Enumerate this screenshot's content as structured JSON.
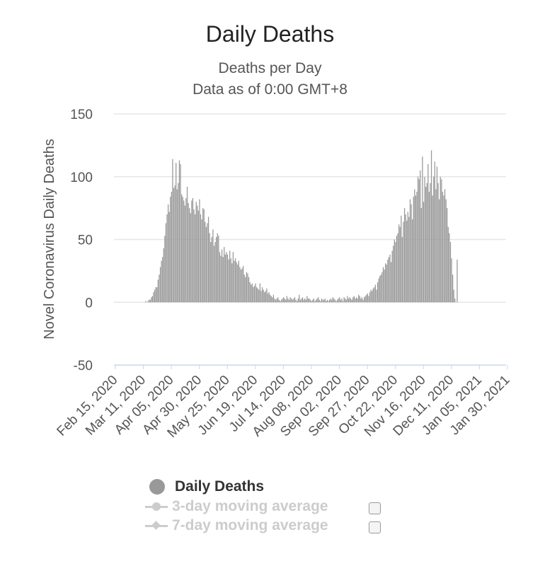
{
  "chart_data": {
    "type": "bar",
    "title": "Daily Deaths",
    "subtitle_lines": [
      "Deaths per Day",
      "Data as of 0:00 GMT+8"
    ],
    "ylabel": "Novel Coronavirus Daily Deaths",
    "ylim": [
      -50,
      150
    ],
    "yticks": [
      150,
      100,
      50,
      0,
      -50
    ],
    "grid": true,
    "x_tick_labels": [
      "Feb 15, 2020",
      "Mar 11, 2020",
      "Apr 05, 2020",
      "Apr 30, 2020",
      "May 25, 2020",
      "Jun 19, 2020",
      "Jul 14, 2020",
      "Aug 08, 2020",
      "Sep 02, 2020",
      "Sep 27, 2020",
      "Oct 22, 2020",
      "Nov 16, 2020",
      "Dec 11, 2020",
      "Jan 05, 2021",
      "Jan 30, 2021"
    ],
    "x_start": "2020-02-15",
    "x_end": "2021-01-30",
    "series": [
      {
        "name": "Daily Deaths",
        "color": "#999999",
        "values": [
          0,
          0,
          0,
          0,
          0,
          0,
          0,
          0,
          0,
          0,
          0,
          0,
          0,
          0,
          0,
          0,
          0,
          0,
          0,
          0,
          0,
          0,
          0,
          0,
          0,
          0,
          0,
          0,
          1,
          0,
          1,
          2,
          2,
          4,
          5,
          8,
          10,
          12,
          12,
          18,
          22,
          28,
          33,
          36,
          43,
          53,
          63,
          70,
          78,
          72,
          84,
          88,
          114,
          91,
          93,
          111,
          90,
          95,
          113,
          110,
          86,
          84,
          81,
          77,
          83,
          92,
          79,
          75,
          71,
          81,
          83,
          74,
          70,
          80,
          77,
          73,
          82,
          70,
          66,
          75,
          74,
          64,
          60,
          63,
          68,
          55,
          48,
          52,
          58,
          45,
          48,
          52,
          55,
          53,
          40,
          37,
          42,
          36,
          44,
          38,
          40,
          38,
          34,
          41,
          35,
          31,
          40,
          33,
          35,
          32,
          30,
          33,
          28,
          26,
          27,
          29,
          22,
          20,
          24,
          23,
          20,
          16,
          14,
          15,
          12,
          13,
          15,
          12,
          11,
          10,
          15,
          9,
          12,
          10,
          8,
          9,
          11,
          7,
          8,
          6,
          5,
          4,
          6,
          3,
          2,
          3,
          4,
          2,
          1,
          2,
          3,
          4,
          3,
          2,
          5,
          3,
          2,
          4,
          3,
          2,
          3,
          4,
          2,
          1,
          3,
          6,
          2,
          3,
          4,
          2,
          3,
          2,
          5,
          3,
          3,
          2,
          1,
          2,
          3,
          1,
          2,
          3,
          4,
          2,
          1,
          3,
          2,
          2,
          3,
          1,
          2,
          1,
          2,
          3,
          2,
          4,
          3,
          2,
          1,
          2,
          3,
          4,
          2,
          3,
          1,
          4,
          3,
          2,
          5,
          3,
          4,
          3,
          2,
          4,
          5,
          3,
          4,
          3,
          6,
          5,
          3,
          4,
          2,
          4,
          5,
          6,
          7,
          5,
          8,
          10,
          9,
          11,
          12,
          14,
          10,
          16,
          19,
          21,
          22,
          24,
          28,
          26,
          31,
          30,
          34,
          36,
          38,
          32,
          41,
          45,
          50,
          48,
          53,
          55,
          62,
          60,
          69,
          52,
          64,
          75,
          70,
          65,
          72,
          68,
          82,
          78,
          66,
          84,
          90,
          85,
          88,
          100,
          98,
          105,
          75,
          116,
          80,
          100,
          92,
          95,
          110,
          88,
          95,
          121,
          85,
          100,
          112,
          90,
          108,
          95,
          82,
          100,
          98,
          88,
          85,
          90,
          82,
          75,
          60,
          55,
          48,
          35,
          22,
          10,
          3,
          0,
          34
        ]
      },
      {
        "name": "3-day moving average",
        "enabled": false
      },
      {
        "name": "7-day moving average",
        "enabled": false
      }
    ]
  }
}
